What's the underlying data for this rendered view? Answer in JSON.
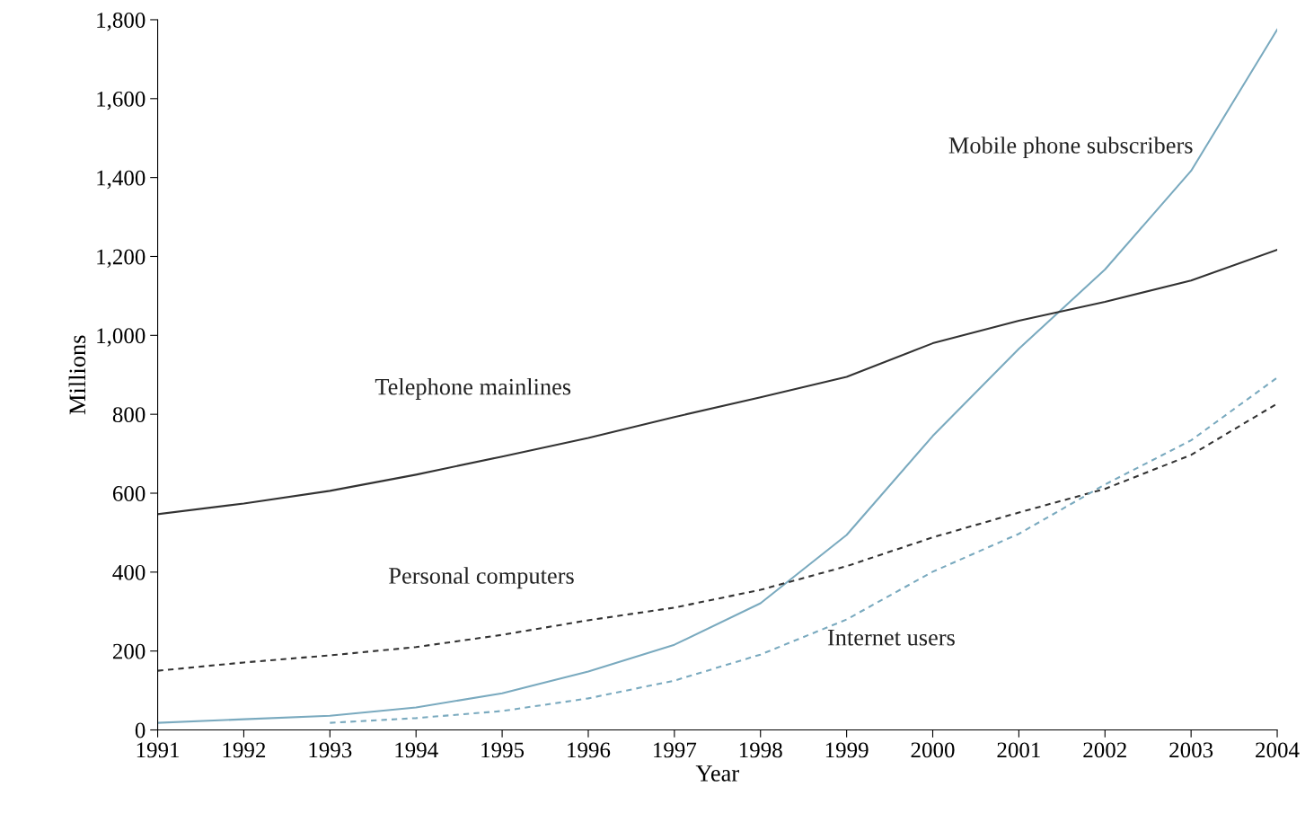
{
  "chart_data": {
    "type": "line",
    "xlabel": "Year",
    "ylabel": "Millions",
    "x": [
      1991,
      1992,
      1993,
      1994,
      1995,
      1996,
      1997,
      1998,
      1999,
      2000,
      2001,
      2002,
      2003,
      2004
    ],
    "xlim": [
      1991,
      2004
    ],
    "xticks": [
      1991,
      1992,
      1993,
      1994,
      1995,
      1996,
      1997,
      1998,
      1999,
      2000,
      2001,
      2002,
      2003,
      2004
    ],
    "ylim": [
      0,
      1800
    ],
    "yticks": [
      0,
      200,
      400,
      600,
      800,
      {
        "value": 1000,
        "label": "1,000"
      },
      {
        "value": 1200,
        "label": "1,200"
      },
      {
        "value": 1400,
        "label": "1,400"
      },
      {
        "value": 1600,
        "label": "1,600"
      },
      {
        "value": 1800,
        "label": "1,800"
      }
    ],
    "grid": false,
    "legend": false,
    "marker": "none",
    "series": [
      {
        "name": "Mobile phone subscribers",
        "color": "#7aaabf",
        "line_style": "solid",
        "values": [
          18,
          27,
          36,
          57,
          93,
          148,
          216,
          321,
          494,
          745,
          966,
          1167,
          1417,
          1775
        ]
      },
      {
        "name": "Telephone mainlines",
        "color": "#333333",
        "line_style": "solid",
        "values": [
          547,
          574,
          606,
          647,
          693,
          740,
          793,
          843,
          895,
          980,
          1037,
          1085,
          1139,
          1217
        ]
      },
      {
        "name": "Personal computers",
        "color": "#333333",
        "line_style": "dashed",
        "values": [
          150,
          171,
          189,
          210,
          241,
          278,
          310,
          355,
          415,
          488,
          551,
          611,
          697,
          827
        ]
      },
      {
        "name": "Internet users",
        "color": "#7aaabf",
        "line_style": "dashed",
        "values": [
          null,
          null,
          18,
          30,
          48,
          80,
          125,
          191,
          280,
          401,
          497,
          622,
          734,
          893
        ]
      }
    ]
  }
}
